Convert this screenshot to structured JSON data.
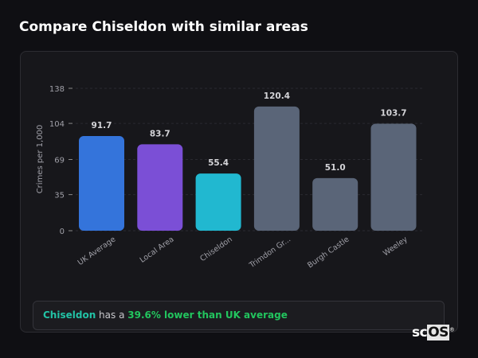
{
  "header": {
    "title": "Compare Chiseldon with similar areas"
  },
  "chart_data": {
    "type": "bar",
    "ylabel": "Crimes per 1,000",
    "xlabel": "",
    "ylim": [
      0,
      138
    ],
    "yticks": [
      0,
      35,
      69,
      104,
      138
    ],
    "grid": true,
    "categories": [
      "UK Average",
      "Local Area",
      "Chiseldon",
      "Trimdon Gr...",
      "Burgh Castle",
      "Weeley"
    ],
    "values": [
      91.7,
      83.7,
      55.4,
      120.4,
      51.0,
      103.7
    ],
    "value_labels": [
      "91.7",
      "83.7",
      "55.4",
      "120.4",
      "51.0",
      "103.7"
    ],
    "colors": [
      "#3474db",
      "#7b4fd6",
      "#21b8d0",
      "#5a6578",
      "#5a6578",
      "#5a6578"
    ]
  },
  "summary": {
    "area": "Chiseldon",
    "middle": " has a ",
    "comparison": "39.6% lower than UK average"
  },
  "logo": {
    "text_a": "sc",
    "text_b": "OS",
    "mark": "®"
  }
}
